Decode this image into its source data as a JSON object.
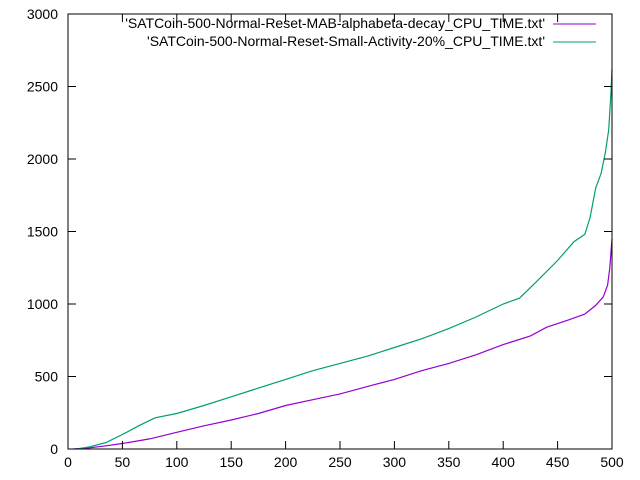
{
  "chart_data": {
    "type": "line",
    "title": "",
    "xlabel": "",
    "ylabel": "",
    "xlim": [
      0,
      500
    ],
    "ylim": [
      0,
      3000
    ],
    "xticks": [
      0,
      50,
      100,
      150,
      200,
      250,
      300,
      350,
      400,
      450,
      500
    ],
    "yticks": [
      0,
      500,
      1000,
      1500,
      2000,
      2500,
      3000
    ],
    "xtick_labels": [
      "0",
      "50",
      "100",
      "150",
      "200",
      "250",
      "300",
      "350",
      "400",
      "450",
      "500"
    ],
    "ytick_labels": [
      "0",
      "500",
      "1000",
      "1500",
      "2000",
      "2500",
      "3000"
    ],
    "grid": false,
    "legend_position": "top-right",
    "series": [
      {
        "name": "'SATCoin-500-Normal-Reset-MAB-alphabeta-decay_CPU_TIME.txt'",
        "color": "#9400d3",
        "points": [
          [
            5,
            0
          ],
          [
            20,
            8
          ],
          [
            35,
            22
          ],
          [
            50,
            38
          ],
          [
            75,
            70
          ],
          [
            100,
            115
          ],
          [
            125,
            160
          ],
          [
            150,
            200
          ],
          [
            175,
            245
          ],
          [
            200,
            300
          ],
          [
            225,
            340
          ],
          [
            250,
            380
          ],
          [
            275,
            430
          ],
          [
            300,
            480
          ],
          [
            325,
            540
          ],
          [
            350,
            590
          ],
          [
            375,
            650
          ],
          [
            400,
            720
          ],
          [
            425,
            780
          ],
          [
            440,
            840
          ],
          [
            460,
            890
          ],
          [
            475,
            930
          ],
          [
            485,
            990
          ],
          [
            492,
            1050
          ],
          [
            496,
            1130
          ],
          [
            498,
            1250
          ],
          [
            499,
            1350
          ],
          [
            500,
            1450
          ]
        ]
      },
      {
        "name": "'SATCoin-500-Normal-Reset-Small-Activity-20%_CPU_TIME.txt'",
        "color": "#009e73",
        "points": [
          [
            8,
            0
          ],
          [
            20,
            15
          ],
          [
            35,
            45
          ],
          [
            50,
            100
          ],
          [
            65,
            160
          ],
          [
            80,
            215
          ],
          [
            100,
            245
          ],
          [
            125,
            300
          ],
          [
            150,
            360
          ],
          [
            175,
            420
          ],
          [
            200,
            480
          ],
          [
            225,
            540
          ],
          [
            250,
            590
          ],
          [
            275,
            640
          ],
          [
            300,
            700
          ],
          [
            325,
            760
          ],
          [
            350,
            830
          ],
          [
            375,
            910
          ],
          [
            400,
            1000
          ],
          [
            415,
            1040
          ],
          [
            430,
            1150
          ],
          [
            450,
            1300
          ],
          [
            465,
            1430
          ],
          [
            475,
            1480
          ],
          [
            480,
            1600
          ],
          [
            485,
            1800
          ],
          [
            490,
            1900
          ],
          [
            494,
            2050
          ],
          [
            497,
            2200
          ],
          [
            499,
            2450
          ],
          [
            500,
            2620
          ]
        ]
      }
    ]
  }
}
